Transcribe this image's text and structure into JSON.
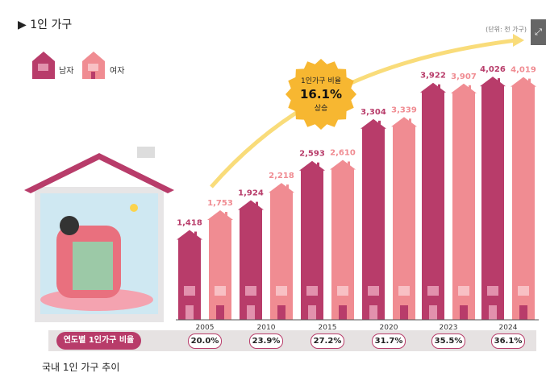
{
  "header": {
    "title": "▶ 1인 가구",
    "unit": "(단위: 천 가구)",
    "expand_icon": "expand-icon"
  },
  "legend": {
    "male": "남자",
    "female": "여자"
  },
  "badge": {
    "line1": "1인가구 비율",
    "value": "16.1%",
    "line3": "상승"
  },
  "rate_label": "연도별 1인가구 비율",
  "caption": "국내 1인 가구 추이",
  "colors": {
    "male": "#b83c6a",
    "female": "#f08c92",
    "badge": "#f7b731",
    "arrow": "#f9dc7a"
  },
  "chart_data": {
    "type": "bar",
    "title": "1인 가구",
    "categories": [
      "2005",
      "2010",
      "2015",
      "2020",
      "2023",
      "2024"
    ],
    "series": [
      {
        "name": "남자",
        "values": [
          1418,
          1924,
          2593,
          3304,
          3922,
          4026
        ],
        "labels": [
          "1,418",
          "1,924",
          "2,593",
          "3,304",
          "3,922",
          "4,026"
        ]
      },
      {
        "name": "여자",
        "values": [
          1753,
          2218,
          2610,
          3339,
          3907,
          4019
        ],
        "labels": [
          "1,753",
          "2,218",
          "2,610",
          "3,339",
          "3,907",
          "4,019"
        ]
      }
    ],
    "ratio": [
      "20.0%",
      "23.9%",
      "27.2%",
      "31.7%",
      "35.5%",
      "36.1%"
    ],
    "ylabel": "천 가구"
  }
}
